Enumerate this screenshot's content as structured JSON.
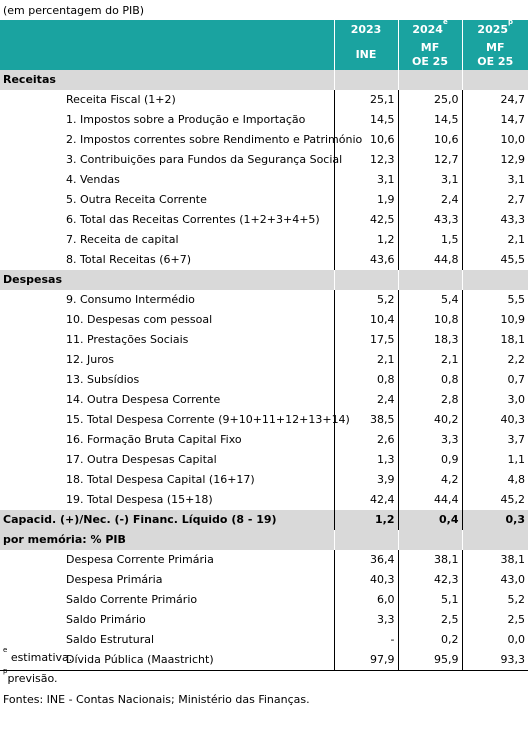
{
  "caption": "(em percentagem do PIB)",
  "header": {
    "years": [
      {
        "year": "2023",
        "sup": "",
        "source": "INE"
      },
      {
        "year": "2024",
        "sup": "e",
        "source_line1": "MF",
        "source_line2": "OE 25"
      },
      {
        "year": "2025",
        "sup": "p",
        "source_line1": "MF",
        "source_line2": "OE 25"
      }
    ]
  },
  "sections": {
    "receitas": "Receitas",
    "despesas": "Despesas",
    "memoria": "por memória: % PIB"
  },
  "receitas": [
    {
      "label": "Receita Fiscal (1+2)",
      "v": [
        "25,1",
        "25,0",
        "24,7"
      ]
    },
    {
      "label": "1. Impostos sobre a Produção e Importação",
      "v": [
        "14,5",
        "14,5",
        "14,7"
      ]
    },
    {
      "label": "2. Impostos correntes sobre Rendimento e Património",
      "v": [
        "10,6",
        "10,6",
        "10,0"
      ]
    },
    {
      "label": "3. Contribuições para Fundos da Segurança Social",
      "v": [
        "12,3",
        "12,7",
        "12,9"
      ]
    },
    {
      "label": "4. Vendas",
      "v": [
        "3,1",
        "3,1",
        "3,1"
      ]
    },
    {
      "label": "5. Outra Receita Corrente",
      "v": [
        "1,9",
        "2,4",
        "2,7"
      ]
    },
    {
      "label": "6. Total das Receitas Correntes (1+2+3+4+5)",
      "v": [
        "42,5",
        "43,3",
        "43,3"
      ]
    },
    {
      "label": "7. Receita de capital",
      "v": [
        "1,2",
        "1,5",
        "2,1"
      ]
    },
    {
      "label": "8. Total Receitas (6+7)",
      "v": [
        "43,6",
        "44,8",
        "45,5"
      ]
    }
  ],
  "despesas": [
    {
      "label": "9. Consumo Intermédio",
      "v": [
        "5,2",
        "5,4",
        "5,5"
      ]
    },
    {
      "label": "10. Despesas com pessoal",
      "v": [
        "10,4",
        "10,8",
        "10,9"
      ]
    },
    {
      "label": "11. Prestações Sociais",
      "v": [
        "17,5",
        "18,3",
        "18,1"
      ]
    },
    {
      "label": "12. Juros",
      "v": [
        "2,1",
        "2,1",
        "2,2"
      ]
    },
    {
      "label": "13. Subsídios",
      "v": [
        "0,8",
        "0,8",
        "0,7"
      ]
    },
    {
      "label": "14. Outra Despesa Corrente",
      "v": [
        "2,4",
        "2,8",
        "3,0"
      ]
    },
    {
      "label": "15. Total Despesa Corrente (9+10+11+12+13+14)",
      "v": [
        "38,5",
        "40,2",
        "40,3"
      ]
    },
    {
      "label": "16. Formação Bruta Capital Fixo",
      "v": [
        "2,6",
        "3,3",
        "3,7"
      ]
    },
    {
      "label": "17. Outra Despesas Capital",
      "v": [
        "1,3",
        "0,9",
        "1,1"
      ]
    },
    {
      "label": "18. Total Despesa Capital (16+17)",
      "v": [
        "3,9",
        "4,2",
        "4,8"
      ]
    },
    {
      "label": "19. Total Despesa (15+18)",
      "v": [
        "42,4",
        "44,4",
        "45,2"
      ]
    }
  ],
  "capacidade": {
    "label": "Capacid. (+)/Nec. (-) Financ. Líquido (8 - 19)",
    "v": [
      "1,2",
      "0,4",
      "0,3"
    ]
  },
  "memoria": [
    {
      "label": "Despesa Corrente Primária",
      "v": [
        "36,4",
        "38,1",
        "38,1"
      ]
    },
    {
      "label": "Despesa Primária",
      "v": [
        "40,3",
        "42,3",
        "43,0"
      ]
    },
    {
      "label": "Saldo Corrente Primário",
      "v": [
        "6,0",
        "5,1",
        "5,2"
      ]
    },
    {
      "label": "Saldo Primário",
      "v": [
        "3,3",
        "2,5",
        "2,5"
      ]
    },
    {
      "label": "Saldo Estrutural",
      "v": [
        "-",
        "0,2",
        "0,0"
      ]
    },
    {
      "label": "Dívida Pública (Maastricht)",
      "v": [
        "97,9",
        "95,9",
        "93,3"
      ]
    }
  ],
  "notes": {
    "estimativa_mark": "e",
    "estimativa": "estimativa.",
    "previsao_mark": "p",
    "previsao": "previsão.",
    "fontes": "Fontes: INE - Contas Nacionais; Ministério das Finanças."
  }
}
